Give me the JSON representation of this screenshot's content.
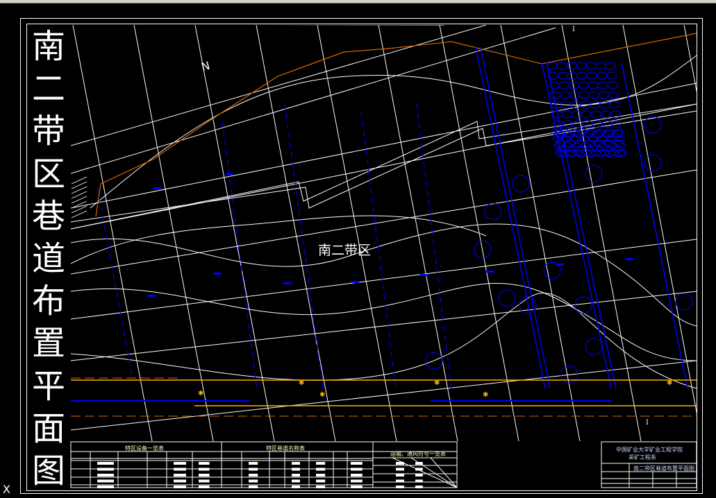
{
  "title_vertical": [
    "南",
    "二",
    "带",
    "区",
    "巷",
    "道",
    "布",
    "置",
    "平",
    "面",
    "图"
  ],
  "area_label": "南二带区",
  "north_label": "N",
  "section_marks": [
    "I",
    "I"
  ],
  "tables": {
    "equipment_title": "特区设备一览表",
    "roadway_title": "特区巷道名称表",
    "symbols_title": "运输、通风符号一览表"
  },
  "title_block": {
    "school": "中国矿业大学矿业工程学院",
    "department": "采矿工程系",
    "drawing_name": "南二带区巷道布置平面图"
  },
  "ucs_label": "X",
  "colors": {
    "background": "#000000",
    "lines": "#ffffff",
    "roadway": "#0000ff",
    "boundary": "#d86a00",
    "conveyor": "#ffb000"
  }
}
